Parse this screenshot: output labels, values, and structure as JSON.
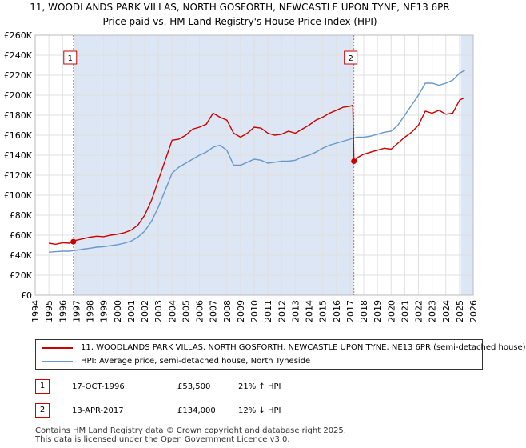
{
  "title_line1": "11, WOODLANDS PARK VILLAS, NORTH GOSFORTH, NEWCASTLE UPON TYNE, NE13 6PR",
  "title_line2": "Price paid vs. HM Land Registry's House Price Index (HPI)",
  "colors": {
    "price": "#cc0000",
    "hpi": "#6699cc",
    "shade": "#dde6f5",
    "grid": "#e0e0e0",
    "vline": "#dd6666"
  },
  "chart_data": {
    "type": "line",
    "xlim": [
      1994,
      2026
    ],
    "ylim": [
      0,
      260000
    ],
    "y_ticks": [
      {
        "value": 0,
        "label": "£0"
      },
      {
        "value": 20000,
        "label": "£20K"
      },
      {
        "value": 40000,
        "label": "£40K"
      },
      {
        "value": 60000,
        "label": "£60K"
      },
      {
        "value": 80000,
        "label": "£80K"
      },
      {
        "value": 100000,
        "label": "£100K"
      },
      {
        "value": 120000,
        "label": "£120K"
      },
      {
        "value": 140000,
        "label": "£140K"
      },
      {
        "value": 160000,
        "label": "£160K"
      },
      {
        "value": 180000,
        "label": "£180K"
      },
      {
        "value": 200000,
        "label": "£200K"
      },
      {
        "value": 220000,
        "label": "£220K"
      },
      {
        "value": 240000,
        "label": "£240K"
      },
      {
        "value": 260000,
        "label": "£260K"
      }
    ],
    "x_ticks": [
      1994,
      1995,
      1996,
      1997,
      1998,
      1999,
      2000,
      2001,
      2002,
      2003,
      2004,
      2005,
      2006,
      2007,
      2008,
      2009,
      2010,
      2011,
      2012,
      2013,
      2014,
      2015,
      2016,
      2017,
      2018,
      2019,
      2020,
      2021,
      2022,
      2023,
      2024,
      2025,
      2026
    ],
    "shaded_ranges": [
      [
        1996.8,
        2017.28
      ],
      [
        2025.1,
        2026
      ]
    ],
    "series": [
      {
        "name": "11, WOODLANDS PARK VILLAS, NORTH GOSFORTH, NEWCASTLE UPON TYNE, NE13 6PR (semi-detached house)",
        "key": "price",
        "points": [
          [
            1995.0,
            52000
          ],
          [
            1995.5,
            51000
          ],
          [
            1996.0,
            52500
          ],
          [
            1996.5,
            52000
          ],
          [
            1996.79,
            53500
          ],
          [
            1997.0,
            55000
          ],
          [
            1997.5,
            56500
          ],
          [
            1998.0,
            58000
          ],
          [
            1998.5,
            59000
          ],
          [
            1999.0,
            58500
          ],
          [
            1999.5,
            60000
          ],
          [
            2000.0,
            61000
          ],
          [
            2000.5,
            62500
          ],
          [
            2001.0,
            65000
          ],
          [
            2001.5,
            70000
          ],
          [
            2002.0,
            80000
          ],
          [
            2002.5,
            95000
          ],
          [
            2003.0,
            115000
          ],
          [
            2003.5,
            135000
          ],
          [
            2004.0,
            155000
          ],
          [
            2004.5,
            156000
          ],
          [
            2005.0,
            160000
          ],
          [
            2005.5,
            166000
          ],
          [
            2006.0,
            168000
          ],
          [
            2006.5,
            171000
          ],
          [
            2007.0,
            182000
          ],
          [
            2007.5,
            178000
          ],
          [
            2008.0,
            175000
          ],
          [
            2008.5,
            162000
          ],
          [
            2009.0,
            158000
          ],
          [
            2009.5,
            162000
          ],
          [
            2010.0,
            168000
          ],
          [
            2010.5,
            167000
          ],
          [
            2011.0,
            162000
          ],
          [
            2011.5,
            160000
          ],
          [
            2012.0,
            161000
          ],
          [
            2012.5,
            164000
          ],
          [
            2013.0,
            162000
          ],
          [
            2013.5,
            166000
          ],
          [
            2014.0,
            170000
          ],
          [
            2014.5,
            175000
          ],
          [
            2015.0,
            178000
          ],
          [
            2015.5,
            182000
          ],
          [
            2016.0,
            185000
          ],
          [
            2016.5,
            188000
          ],
          [
            2017.0,
            189000
          ],
          [
            2017.2,
            190000
          ],
          [
            2017.28,
            134000
          ],
          [
            2017.6,
            138000
          ],
          [
            2018.0,
            141000
          ],
          [
            2018.5,
            143000
          ],
          [
            2019.0,
            145000
          ],
          [
            2019.5,
            147000
          ],
          [
            2020.0,
            146000
          ],
          [
            2020.5,
            152000
          ],
          [
            2021.0,
            158000
          ],
          [
            2021.5,
            163000
          ],
          [
            2022.0,
            170000
          ],
          [
            2022.5,
            184000
          ],
          [
            2023.0,
            182000
          ],
          [
            2023.5,
            185000
          ],
          [
            2024.0,
            181000
          ],
          [
            2024.5,
            182000
          ],
          [
            2025.0,
            195000
          ],
          [
            2025.3,
            197000
          ]
        ]
      },
      {
        "name": "HPI: Average price, semi-detached house, North Tyneside",
        "key": "hpi",
        "points": [
          [
            1995.0,
            43000
          ],
          [
            1995.5,
            43500
          ],
          [
            1996.0,
            44000
          ],
          [
            1996.5,
            44000
          ],
          [
            1997.0,
            45000
          ],
          [
            1997.5,
            46000
          ],
          [
            1998.0,
            47000
          ],
          [
            1998.5,
            48000
          ],
          [
            1999.0,
            48500
          ],
          [
            1999.5,
            49500
          ],
          [
            2000.0,
            50500
          ],
          [
            2000.5,
            52000
          ],
          [
            2001.0,
            54000
          ],
          [
            2001.5,
            58000
          ],
          [
            2002.0,
            64000
          ],
          [
            2002.5,
            74000
          ],
          [
            2003.0,
            88000
          ],
          [
            2003.5,
            105000
          ],
          [
            2004.0,
            122000
          ],
          [
            2004.5,
            128000
          ],
          [
            2005.0,
            132000
          ],
          [
            2005.5,
            136000
          ],
          [
            2006.0,
            140000
          ],
          [
            2006.5,
            143000
          ],
          [
            2007.0,
            148000
          ],
          [
            2007.5,
            150000
          ],
          [
            2008.0,
            145000
          ],
          [
            2008.5,
            130000
          ],
          [
            2009.0,
            130000
          ],
          [
            2009.5,
            133000
          ],
          [
            2010.0,
            136000
          ],
          [
            2010.5,
            135000
          ],
          [
            2011.0,
            132000
          ],
          [
            2011.5,
            133000
          ],
          [
            2012.0,
            134000
          ],
          [
            2012.5,
            134000
          ],
          [
            2013.0,
            135000
          ],
          [
            2013.5,
            138000
          ],
          [
            2014.0,
            140000
          ],
          [
            2014.5,
            143000
          ],
          [
            2015.0,
            147000
          ],
          [
            2015.5,
            150000
          ],
          [
            2016.0,
            152000
          ],
          [
            2016.5,
            154000
          ],
          [
            2017.0,
            156000
          ],
          [
            2017.5,
            158000
          ],
          [
            2018.0,
            158000
          ],
          [
            2018.5,
            159000
          ],
          [
            2019.0,
            161000
          ],
          [
            2019.5,
            163000
          ],
          [
            2020.0,
            164000
          ],
          [
            2020.5,
            170000
          ],
          [
            2021.0,
            180000
          ],
          [
            2021.5,
            190000
          ],
          [
            2022.0,
            200000
          ],
          [
            2022.5,
            212000
          ],
          [
            2023.0,
            212000
          ],
          [
            2023.5,
            210000
          ],
          [
            2024.0,
            212000
          ],
          [
            2024.5,
            215000
          ],
          [
            2025.0,
            222000
          ],
          [
            2025.4,
            225000
          ]
        ]
      }
    ],
    "annotations": [
      {
        "id": "1",
        "x": 1996.79,
        "y": 53500,
        "label": "1"
      },
      {
        "id": "2",
        "x": 2017.28,
        "y": 134000,
        "label": "2"
      }
    ]
  },
  "legend": {
    "price_label": "11, WOODLANDS PARK VILLAS, NORTH GOSFORTH, NEWCASTLE UPON TYNE, NE13 6PR (semi-detached house)",
    "hpi_label": "HPI: Average price, semi-detached house, North Tyneside"
  },
  "transactions": [
    {
      "marker": "1",
      "date": "17-OCT-1996",
      "price": "£53,500",
      "hpi": "21% ↑ HPI"
    },
    {
      "marker": "2",
      "date": "13-APR-2017",
      "price": "£134,000",
      "hpi": "12% ↓ HPI"
    }
  ],
  "footer": {
    "line1": "Contains HM Land Registry data © Crown copyright and database right 2025.",
    "line2": "This data is licensed under the Open Government Licence v3.0."
  }
}
